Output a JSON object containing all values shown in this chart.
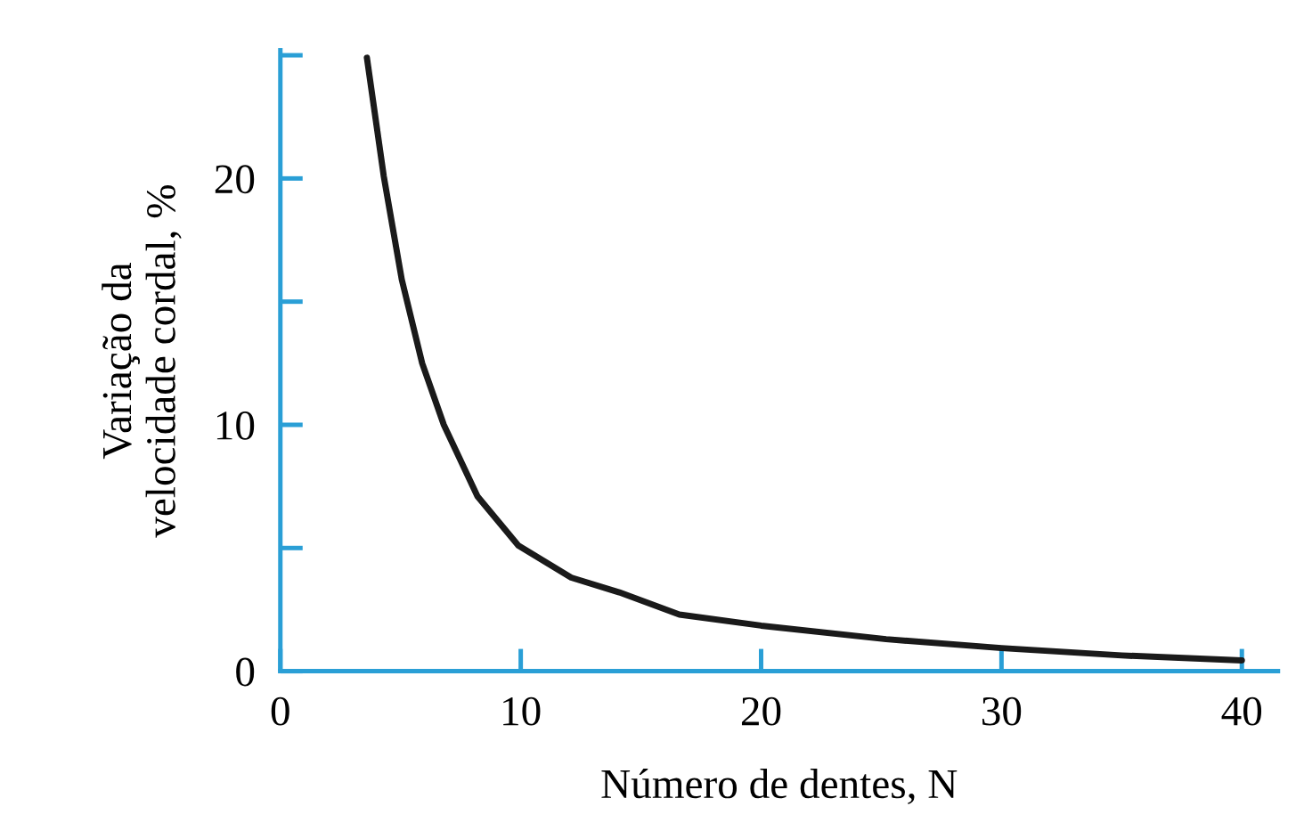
{
  "chart_data": {
    "type": "line",
    "xlabel": "Número de dentes, N",
    "ylabel": "Variação da\nvelocidade cordal, %",
    "x": [
      3.6,
      4.3,
      5.05,
      5.9,
      6.8,
      8.2,
      9.9,
      12.1,
      14.1,
      16.6,
      20,
      25.2,
      30,
      35,
      40
    ],
    "series": [
      {
        "color": "#1a1a1a",
        "values": [
          24.9,
          20.1,
          15.9,
          12.5,
          10.0,
          7.1,
          5.1,
          3.8,
          3.2,
          2.3,
          1.85,
          1.3,
          0.94,
          0.64,
          0.44
        ]
      }
    ],
    "xlim": [
      0,
      41.5
    ],
    "ylim": [
      0,
      25.2
    ],
    "xticks": [
      0,
      10,
      20,
      30,
      40
    ],
    "yticks": [
      0,
      {
        "value": 5,
        "label": null
      },
      10,
      {
        "value": 15,
        "label": null
      },
      20,
      {
        "value": 25,
        "label": null
      }
    ],
    "grid": false,
    "marker": "none",
    "line_style": "solid"
  }
}
